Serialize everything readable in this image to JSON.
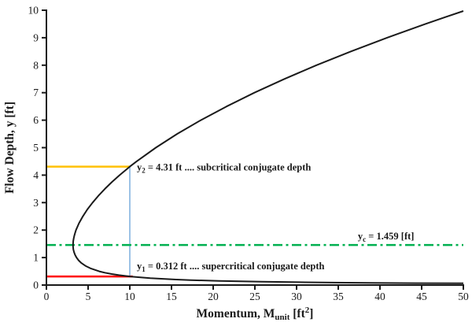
{
  "figure": {
    "background": "#FFFFFF",
    "axis_color": "#1A1A1A"
  },
  "chart_data": {
    "type": "line",
    "title": "",
    "xlabel_parts": [
      {
        "t": "Momentum, M"
      },
      {
        "t": "unit",
        "sub": true
      },
      {
        "t": " [ft"
      },
      {
        "t": "2",
        "sup": true
      },
      {
        "t": "]"
      }
    ],
    "ylabel_parts": [
      {
        "t": "Flow Depth, y [ft]"
      }
    ],
    "xlim": [
      0,
      50
    ],
    "ylim": [
      0,
      10
    ],
    "x_ticks": [
      0,
      5,
      10,
      15,
      20,
      25,
      30,
      35,
      40,
      45,
      50
    ],
    "y_ticks": [
      0,
      1,
      2,
      3,
      4,
      5,
      6,
      7,
      8,
      9,
      10
    ],
    "grid": false,
    "legend": "none",
    "series": [
      {
        "name": "momentum-curve",
        "color": "#1A1A1A",
        "width": 2,
        "points": [
          [
            50.0,
            0.0622
          ],
          [
            44.37,
            0.07
          ],
          [
            38.82,
            0.08
          ],
          [
            34.51,
            0.09
          ],
          [
            31.06,
            0.1
          ],
          [
            25.89,
            0.12
          ],
          [
            20.71,
            0.15
          ],
          [
            17.27,
            0.18
          ],
          [
            15.55,
            0.2
          ],
          [
            12.45,
            0.25
          ],
          [
            10.0,
            0.312
          ],
          [
            8.69,
            0.36
          ],
          [
            7.84,
            0.4
          ],
          [
            7.0,
            0.45
          ],
          [
            6.34,
            0.5
          ],
          [
            5.36,
            0.6
          ],
          [
            4.68,
            0.7
          ],
          [
            4.2,
            0.8
          ],
          [
            3.86,
            0.9
          ],
          [
            3.61,
            1.0
          ],
          [
            3.43,
            1.1
          ],
          [
            3.31,
            1.2
          ],
          [
            3.23,
            1.3
          ],
          [
            3.2,
            1.4
          ],
          [
            3.19,
            1.459
          ],
          [
            3.21,
            1.55
          ],
          [
            3.22,
            1.6
          ],
          [
            3.27,
            1.7
          ],
          [
            3.35,
            1.8
          ],
          [
            3.44,
            1.9
          ],
          [
            3.55,
            2.0
          ],
          [
            3.91,
            2.25
          ],
          [
            4.37,
            2.5
          ],
          [
            4.91,
            2.75
          ],
          [
            5.54,
            3.0
          ],
          [
            6.24,
            3.25
          ],
          [
            7.01,
            3.5
          ],
          [
            7.86,
            3.75
          ],
          [
            8.78,
            4.0
          ],
          [
            10.0,
            4.31
          ],
          [
            10.82,
            4.5
          ],
          [
            13.12,
            5.0
          ],
          [
            15.69,
            5.5
          ],
          [
            18.52,
            6.0
          ],
          [
            21.6,
            6.5
          ],
          [
            24.94,
            7.0
          ],
          [
            28.54,
            7.5
          ],
          [
            32.39,
            8.0
          ],
          [
            36.49,
            8.5
          ],
          [
            40.85,
            9.0
          ],
          [
            45.45,
            9.5
          ],
          [
            47.85,
            9.75
          ],
          [
            50.0,
            9.97
          ]
        ]
      }
    ],
    "key_values": {
      "subcritical_conjugate_depth_ft": 4.31,
      "supercritical_conjugate_depth_ft": 0.312,
      "critical_depth_ft": 1.459,
      "momentum_value_ft2": 10
    },
    "reference_lines": [
      {
        "name": "momentum-10-line",
        "type": "v",
        "x": 10,
        "y1": 0.312,
        "y2": 4.31,
        "color": "#9DC3E6",
        "width": 2,
        "dash": ""
      },
      {
        "name": "subcritical-depth-line",
        "type": "h",
        "y": 4.31,
        "x1": 0,
        "x2": 10,
        "color": "#FFC000",
        "width": 2.5,
        "dash": ""
      },
      {
        "name": "supercritical-depth-line",
        "type": "h",
        "y": 0.312,
        "x1": 0,
        "x2": 10.35,
        "color": "#FF0000",
        "width": 2.5,
        "dash": ""
      },
      {
        "name": "critical-depth-line",
        "type": "h",
        "y": 1.459,
        "x1": 0,
        "x2": 50,
        "color": "#00B050",
        "width": 2.5,
        "dash": "12 4.5 3 4.5"
      }
    ],
    "annotations": [
      {
        "name": "annotation-y2",
        "x": 10.85,
        "y": 4.31,
        "dy": 5,
        "anchor": "start",
        "parts": [
          {
            "t": "y"
          },
          {
            "t": "2",
            "sub": true
          },
          {
            "t": " = 4.31 ft .... subcritical conjugate depth"
          }
        ]
      },
      {
        "name": "annotation-y1",
        "x": 10.85,
        "y": 0.312,
        "dy": -9,
        "anchor": "start",
        "parts": [
          {
            "t": "y"
          },
          {
            "t": "1",
            "sub": true
          },
          {
            "t": " = 0.312 ft .... supercritical conjugate depth"
          }
        ]
      },
      {
        "name": "annotation-yc",
        "x": 37.35,
        "y": 1.459,
        "dy": -7,
        "anchor": "start",
        "parts": [
          {
            "t": "y"
          },
          {
            "t": "c",
            "sub": true
          },
          {
            "t": " = 1.459 [ft]"
          }
        ]
      }
    ]
  }
}
